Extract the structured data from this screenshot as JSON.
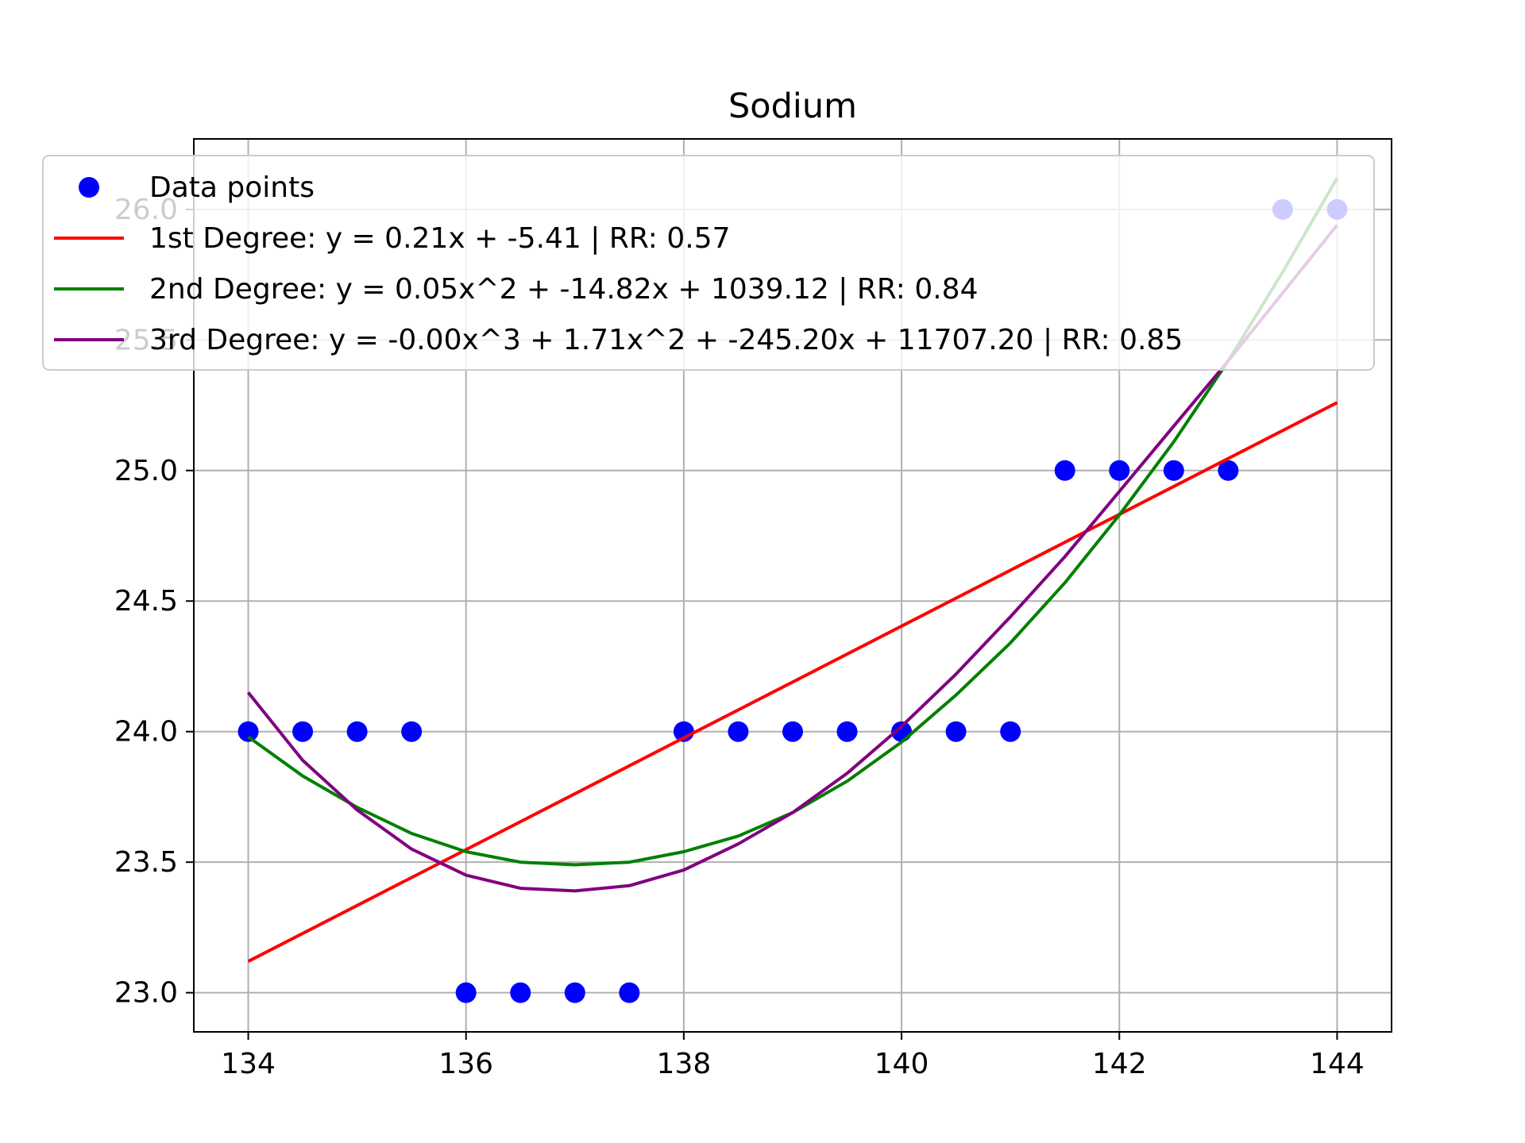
{
  "chart_data": {
    "type": "scatter",
    "title": "Sodium",
    "xlabel": "",
    "ylabel": "",
    "xlim": [
      133.5,
      144.5
    ],
    "ylim": [
      22.85,
      26.27
    ],
    "x_ticks": [
      134,
      136,
      138,
      140,
      142,
      144
    ],
    "x_tick_labels": [
      "134",
      "136",
      "138",
      "140",
      "142",
      "144"
    ],
    "y_ticks": [
      23.0,
      23.5,
      24.0,
      24.5,
      25.0,
      25.5,
      26.0
    ],
    "y_tick_labels": [
      "23.0",
      "23.5",
      "24.0",
      "24.5",
      "25.0",
      "25.5",
      "26.0"
    ],
    "grid": true,
    "legend_position": "upper-left",
    "series": [
      {
        "kind": "scatter",
        "name": "Data points",
        "color": "#0000ff",
        "x": [
          134,
          134.5,
          135,
          135.5,
          136,
          136.5,
          137,
          137.5,
          138,
          138.5,
          139,
          139.5,
          140,
          140.5,
          141,
          141.5,
          142,
          142.5,
          143,
          143.5,
          144
        ],
        "y": [
          24,
          24,
          24,
          24,
          23,
          23,
          23,
          23,
          24,
          24,
          24,
          24,
          24,
          24,
          24,
          25,
          25,
          25,
          25,
          26,
          26
        ]
      },
      {
        "kind": "line",
        "name": "1st Degree: y = 0.21x + -5.41 | RR: 0.57",
        "color": "#ff0000",
        "x": [
          134,
          144
        ],
        "y": [
          23.12,
          25.26
        ]
      },
      {
        "kind": "line",
        "name": "2nd Degree: y = 0.05x^2 + -14.82x + 1039.12 | RR: 0.84",
        "color": "#008000",
        "x": [
          134,
          134.5,
          135,
          135.5,
          136,
          136.5,
          137,
          137.5,
          138,
          138.5,
          139,
          139.5,
          140,
          140.5,
          141,
          141.5,
          142,
          142.5,
          143,
          143.5,
          144
        ],
        "y": [
          23.98,
          23.83,
          23.71,
          23.61,
          23.54,
          23.5,
          23.49,
          23.5,
          23.54,
          23.6,
          23.69,
          23.81,
          23.96,
          24.14,
          24.34,
          24.57,
          24.83,
          25.11,
          25.42,
          25.76,
          26.12
        ]
      },
      {
        "kind": "line",
        "name": "3rd Degree: y = -0.00x^3 + 1.71x^2 + -245.20x + 11707.20 | RR: 0.85",
        "color": "#800080",
        "x": [
          134,
          134.5,
          135,
          135.5,
          136,
          136.5,
          137,
          137.5,
          138,
          138.5,
          139,
          139.5,
          140,
          140.5,
          141,
          141.5,
          142,
          142.5,
          143,
          143.5,
          144
        ],
        "y": [
          24.15,
          23.89,
          23.7,
          23.55,
          23.45,
          23.4,
          23.39,
          23.41,
          23.47,
          23.57,
          23.69,
          23.84,
          24.02,
          24.22,
          24.44,
          24.67,
          24.92,
          25.17,
          25.42,
          25.68,
          25.94
        ]
      }
    ]
  }
}
